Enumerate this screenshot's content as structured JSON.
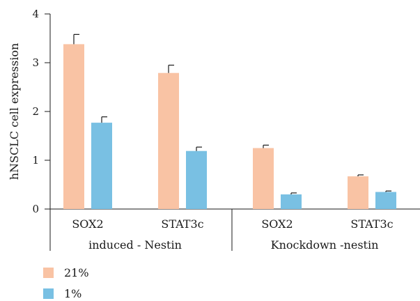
{
  "chart_data": {
    "type": "bar",
    "title": "",
    "xlabel": "",
    "ylabel": "hNSCLC cell expression",
    "ylim": [
      0,
      4
    ],
    "yticks": [
      0,
      1,
      2,
      3,
      4
    ],
    "categories": [
      "SOX2",
      "STAT3c",
      "SOX2",
      "STAT3c"
    ],
    "groups": [
      {
        "label": "induced - Nestin",
        "categories": [
          0,
          1
        ]
      },
      {
        "label": "Knockdown -nestin",
        "categories": [
          2,
          3
        ]
      }
    ],
    "series": [
      {
        "name": "21%",
        "color": "#f9c3a4",
        "values": [
          3.38,
          2.79,
          1.25,
          0.67
        ],
        "errors": [
          0.2,
          0.16,
          0.06,
          0.03
        ]
      },
      {
        "name": "1%",
        "color": "#79c0e3",
        "values": [
          1.77,
          1.19,
          0.3,
          0.35
        ],
        "errors": [
          0.12,
          0.08,
          0.03,
          0.02
        ]
      }
    ],
    "grid": false,
    "legend_position": "bottom-left"
  }
}
